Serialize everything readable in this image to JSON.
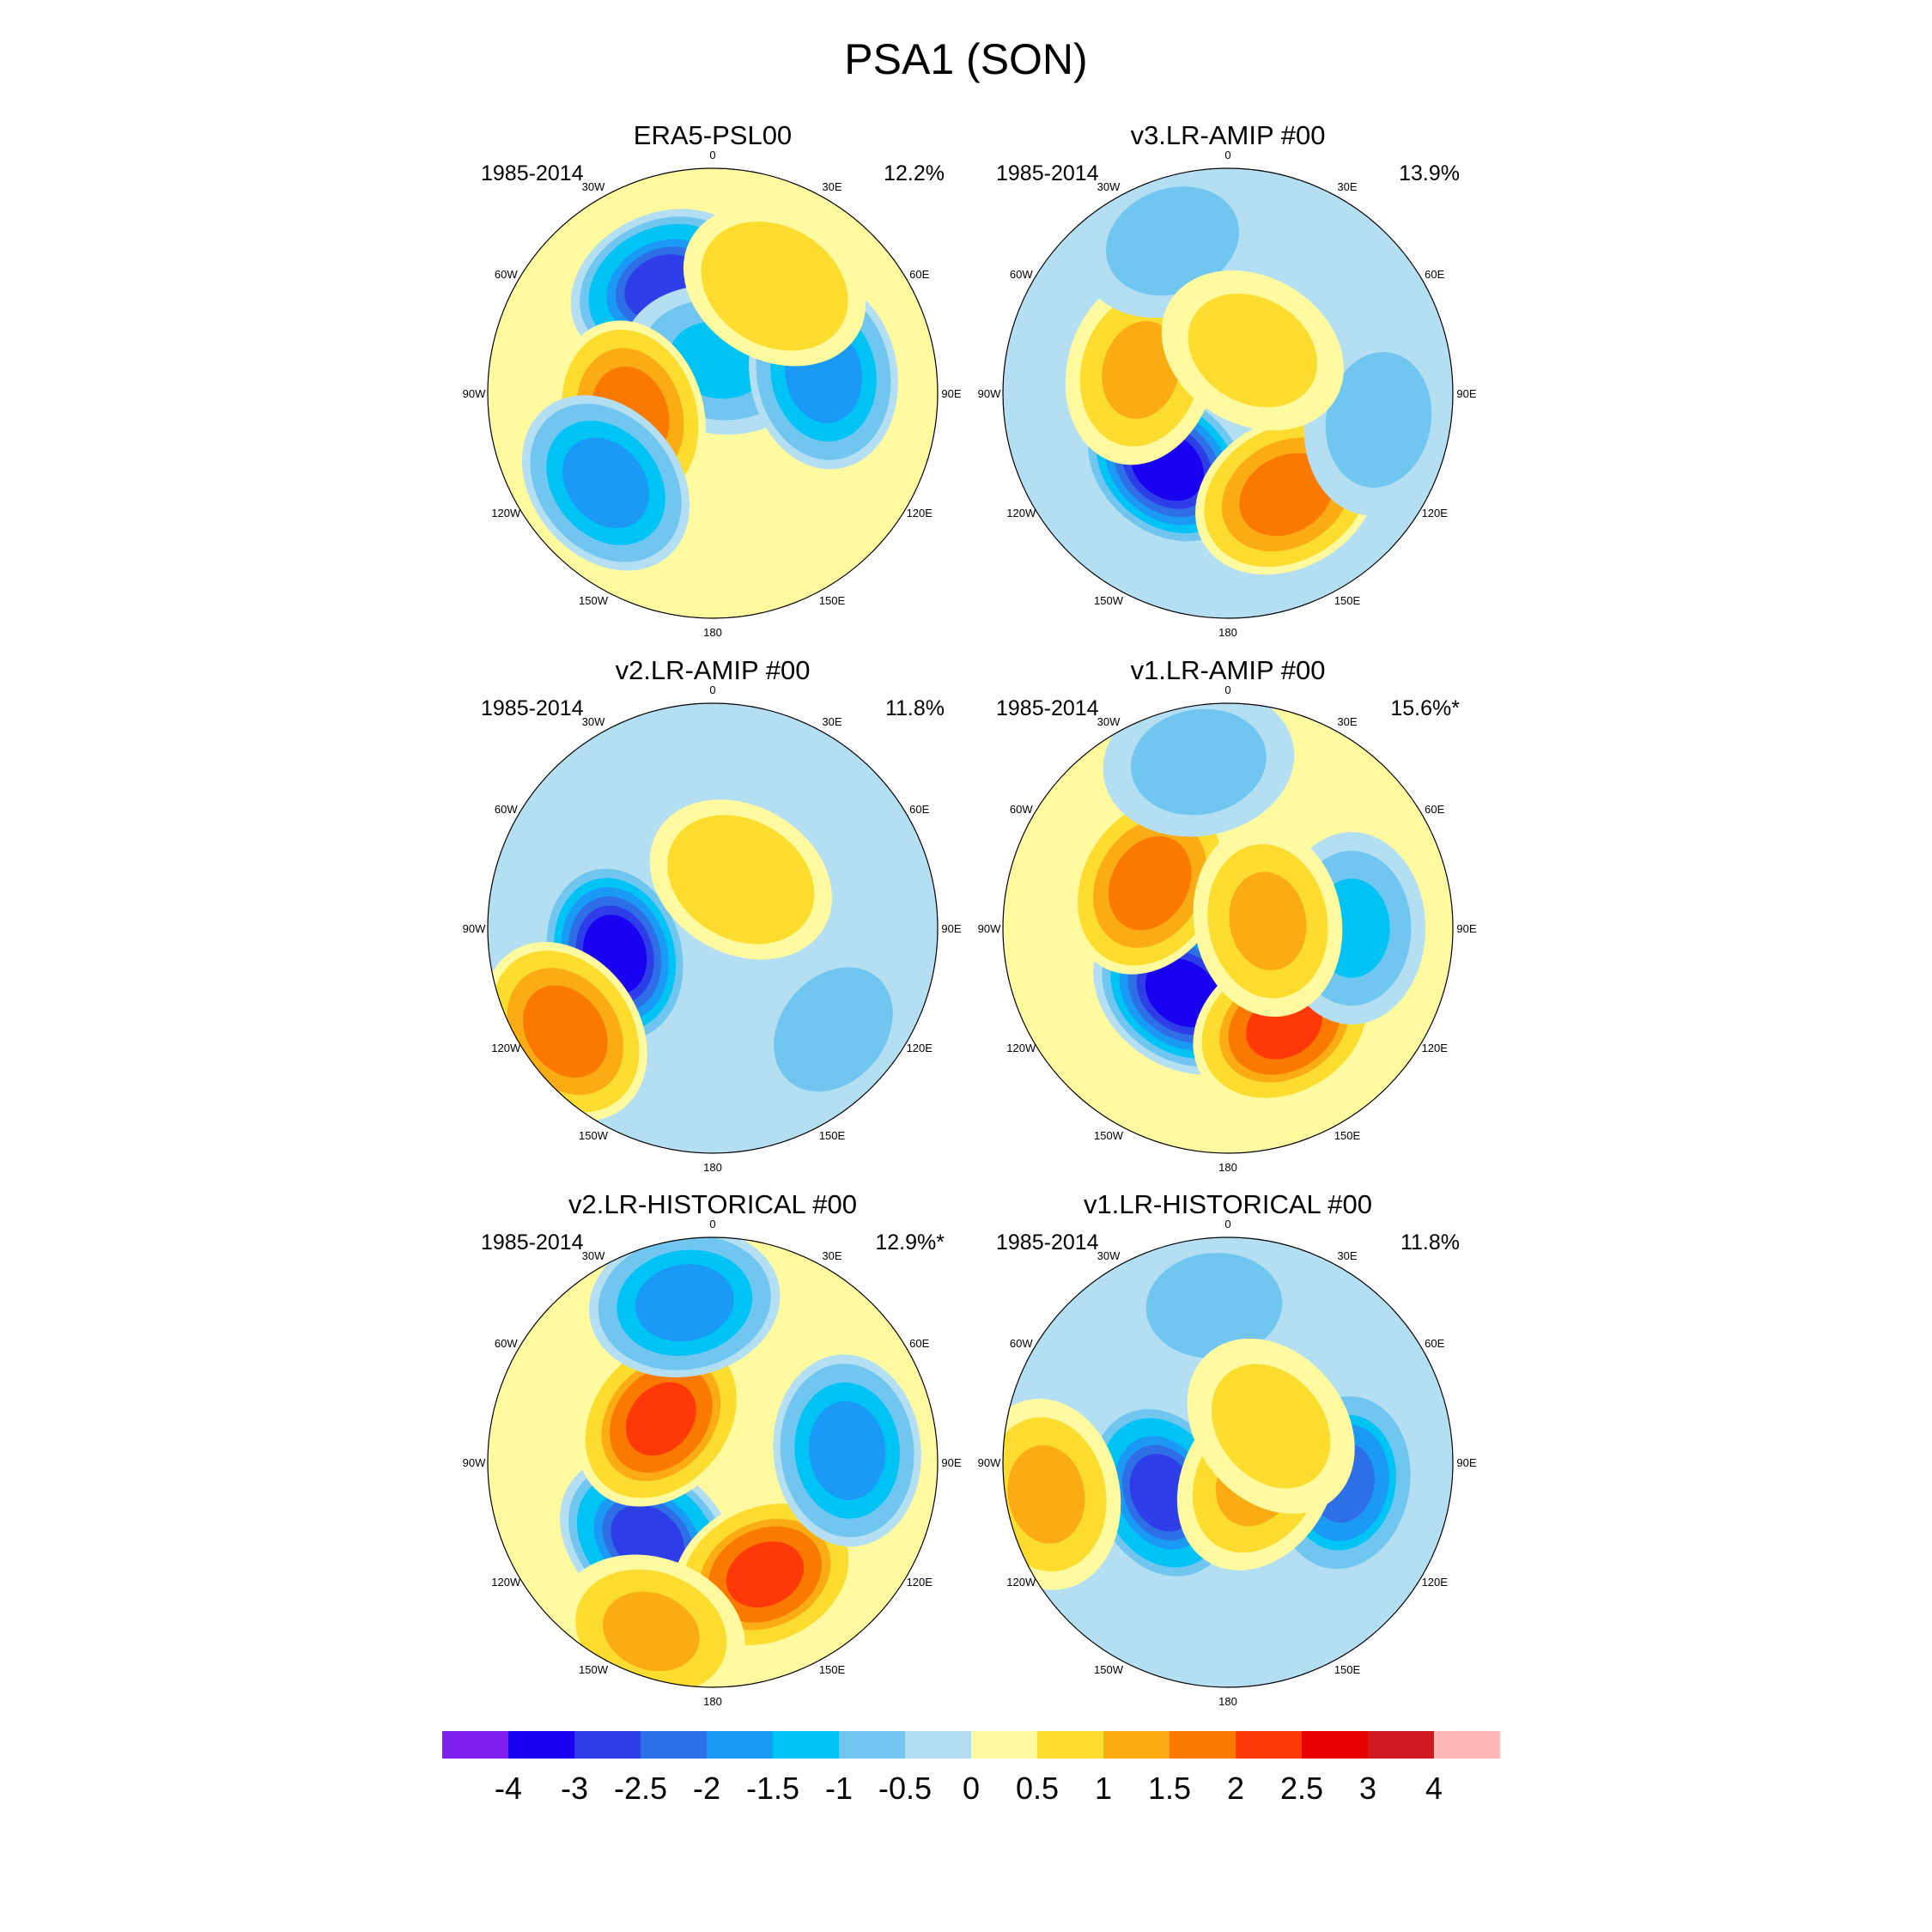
{
  "figure": {
    "title": "PSA1 (SON)"
  },
  "longitude_labels": [
    "0",
    "30E",
    "60E",
    "90E",
    "120E",
    "150E",
    "180",
    "150W",
    "120W",
    "90W",
    "60W",
    "30W"
  ],
  "panels": [
    {
      "title": "ERA5-PSL00",
      "period": "1985-2014",
      "variance": "12.2%",
      "features": [
        {
          "lon": 335,
          "r": 0.52,
          "value": -3.0
        },
        {
          "lon": 10,
          "r": 0.15,
          "value": -1.5
        },
        {
          "lon": 80,
          "r": 0.5,
          "value": -2.0
        },
        {
          "lon": 255,
          "r": 0.38,
          "value": 2.0
        },
        {
          "lon": 30,
          "r": 0.55,
          "value": 1.0
        },
        {
          "lon": 230,
          "r": 0.62,
          "value": -2.0
        }
      ],
      "background": 0.25
    },
    {
      "title": "v3.LR-AMIP  #00",
      "period": "1985-2014",
      "variance": "13.9%",
      "features": [
        {
          "lon": 220,
          "r": 0.42,
          "value": -4.0
        },
        {
          "lon": 150,
          "r": 0.52,
          "value": 2.0
        },
        {
          "lon": 285,
          "r": 0.4,
          "value": 1.5
        },
        {
          "lon": 340,
          "r": 0.72,
          "value": -1.0
        },
        {
          "lon": 100,
          "r": 0.68,
          "value": -1.0
        },
        {
          "lon": 30,
          "r": 0.22,
          "value": 0.8
        }
      ],
      "background": -0.2
    },
    {
      "title": "v2.LR-AMIP  #00",
      "period": "1985-2014",
      "variance": "11.8%",
      "features": [
        {
          "lon": 255,
          "r": 0.45,
          "value": -4.0
        },
        {
          "lon": 235,
          "r": 0.8,
          "value": 2.0
        },
        {
          "lon": 30,
          "r": 0.25,
          "value": 1.0
        },
        {
          "lon": 130,
          "r": 0.7,
          "value": -0.8
        }
      ],
      "background": -0.2
    },
    {
      "title": "v1.LR-AMIP  #00",
      "period": "1985-2014",
      "variance": "15.6%*",
      "features": [
        {
          "lon": 215,
          "r": 0.35,
          "value": -4.0
        },
        {
          "lon": 150,
          "r": 0.5,
          "value": 2.5
        },
        {
          "lon": 300,
          "r": 0.4,
          "value": 2.0
        },
        {
          "lon": 350,
          "r": 0.75,
          "value": -1.0
        },
        {
          "lon": 90,
          "r": 0.55,
          "value": -1.5
        },
        {
          "lon": 80,
          "r": 0.18,
          "value": 1.5
        }
      ],
      "background": 0.3
    },
    {
      "title": "v2.LR-HISTORICAL  #00",
      "period": "1985-2014",
      "variance": "12.9%*",
      "features": [
        {
          "lon": 220,
          "r": 0.45,
          "value": -3.0
        },
        {
          "lon": 155,
          "r": 0.55,
          "value": 2.5
        },
        {
          "lon": 310,
          "r": 0.3,
          "value": 2.5
        },
        {
          "lon": 350,
          "r": 0.72,
          "value": -2.0
        },
        {
          "lon": 85,
          "r": 0.6,
          "value": -2.0
        },
        {
          "lon": 200,
          "r": 0.8,
          "value": 1.5
        }
      ],
      "background": 0.2
    },
    {
      "title": "v1.LR-HISTORICAL  #00",
      "period": "1985-2014",
      "variance": "11.8%",
      "features": [
        {
          "lon": 245,
          "r": 0.32,
          "value": -3.0
        },
        {
          "lon": 260,
          "r": 0.82,
          "value": 1.5
        },
        {
          "lon": 100,
          "r": 0.52,
          "value": -2.5
        },
        {
          "lon": 120,
          "r": 0.15,
          "value": 1.5
        },
        {
          "lon": 355,
          "r": 0.7,
          "value": -1.0
        },
        {
          "lon": 50,
          "r": 0.25,
          "value": 0.8
        }
      ],
      "background": -0.1
    }
  ],
  "colorbar": {
    "colors": [
      "#8020f0",
      "#1a00f0",
      "#2d3ee8",
      "#2e6ee6",
      "#1a9af5",
      "#00c3f5",
      "#71c6f0",
      "#b4dff2",
      "#fffaa0",
      "#fddc30",
      "#fbac14",
      "#fa7a00",
      "#ff3a08",
      "#e60000",
      "#d01820",
      "#ffb8b8"
    ],
    "tick_labels": [
      "-4",
      "-3",
      "-2.5",
      "-2",
      "-1.5",
      "-1",
      "-0.5",
      "0",
      "0.5",
      "1",
      "1.5",
      "2",
      "2.5",
      "3",
      "4"
    ],
    "levels": [
      -4,
      -3,
      -2.5,
      -2,
      -1.5,
      -1,
      -0.5,
      0,
      0.5,
      1,
      1.5,
      2,
      2.5,
      3,
      4
    ]
  }
}
